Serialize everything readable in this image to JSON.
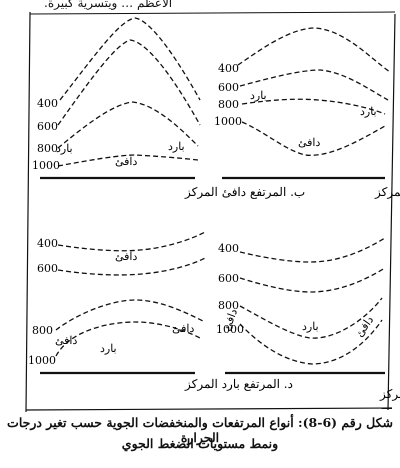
{
  "top_snippet": "الأعظم … ويتسرية كبيرة.",
  "levels": {
    "l400": "400",
    "l600": "600",
    "l800": "800",
    "l1000": "1000"
  },
  "air": {
    "warm": "دافئ",
    "cold": "بارد"
  },
  "panels": {
    "a_title": "أ. المنخفض دافئ المركز",
    "b_title": "ب. المرتفع دافئ المركز",
    "c_title": "ج. المنخفض بارد المركز",
    "d_title": "د. المرتفع بارد المركز"
  },
  "caption": {
    "line1": "شكل رقم (6-8): أنواع المرتفعات والمنخفضات الجوية حسب تغير درجات الحرارة",
    "line2": "ونمط مستويات الضغط الجوي"
  }
}
